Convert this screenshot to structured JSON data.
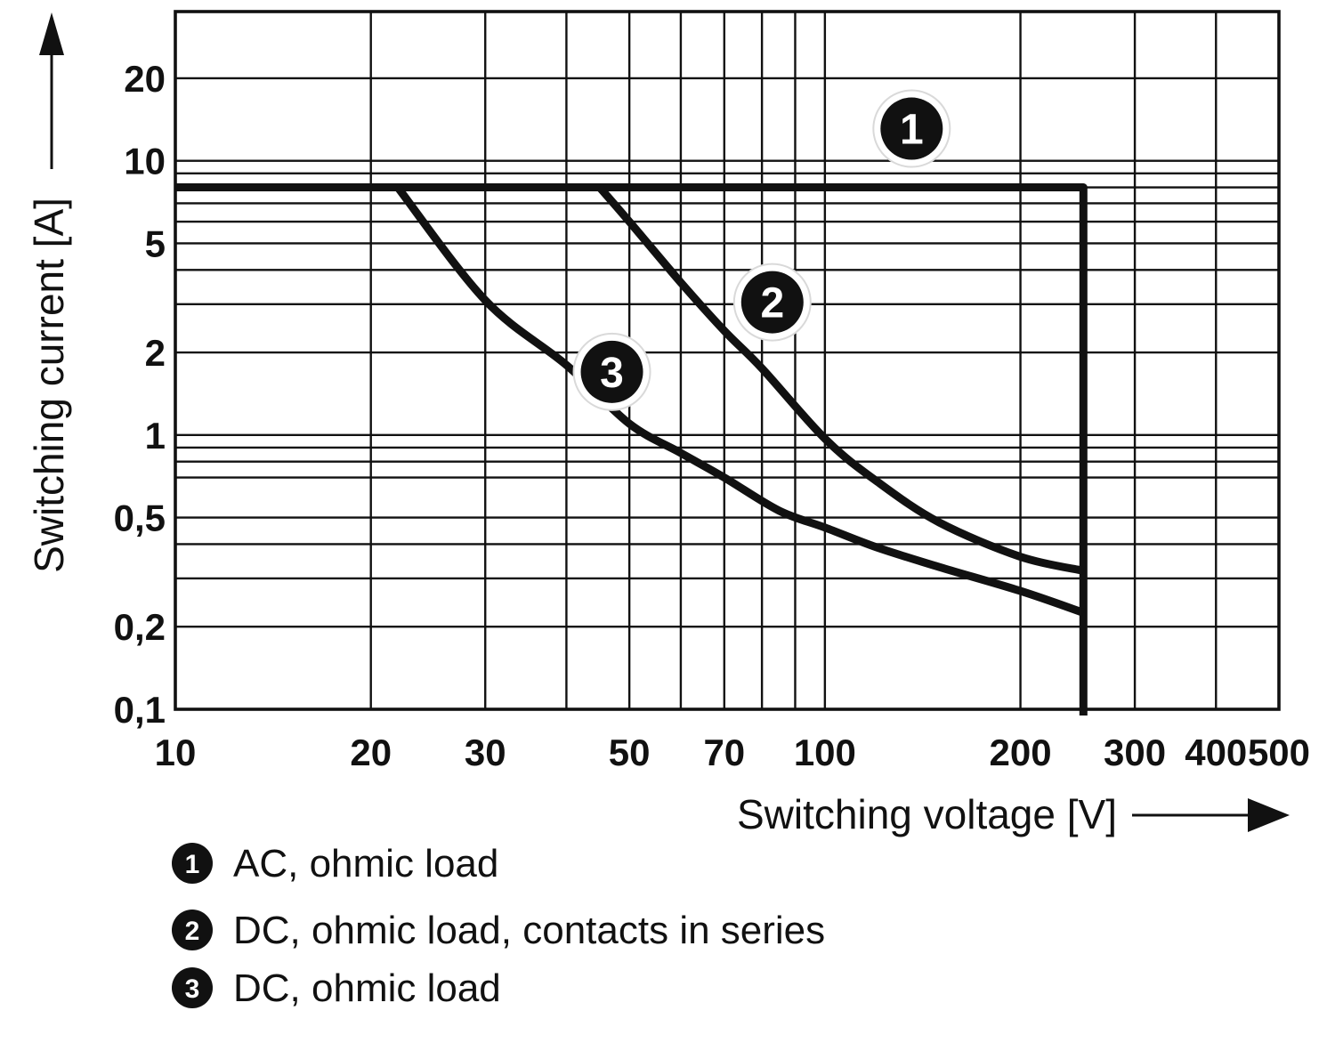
{
  "chart_data": {
    "type": "line",
    "title": "",
    "xlabel": "Switching voltage [V]",
    "ylabel": "Switching current [A]",
    "x_scale": "log",
    "y_scale": "log",
    "xlim": [
      10,
      500
    ],
    "ylim": [
      0.1,
      35
    ],
    "grid": true,
    "legend_position": "bottom-left",
    "x_ticks": [
      {
        "v": 10,
        "label": "10"
      },
      {
        "v": 20,
        "label": "20"
      },
      {
        "v": 30,
        "label": "30"
      },
      {
        "v": 50,
        "label": "50"
      },
      {
        "v": 70,
        "label": "70"
      },
      {
        "v": 100,
        "label": "100"
      },
      {
        "v": 200,
        "label": "200"
      },
      {
        "v": 300,
        "label": "300"
      },
      {
        "v": 400,
        "label": "400"
      },
      {
        "v": 500,
        "label": "500"
      }
    ],
    "y_ticks": [
      {
        "v": 20,
        "label": "20"
      },
      {
        "v": 10,
        "label": "10"
      },
      {
        "v": 5,
        "label": "5"
      },
      {
        "v": 2,
        "label": "2"
      },
      {
        "v": 1,
        "label": "1"
      },
      {
        "v": 0.5,
        "label": "0,5"
      },
      {
        "v": 0.2,
        "label": "0,2"
      },
      {
        "v": 0.1,
        "label": "0,1"
      }
    ],
    "x_gridlines": [
      20,
      30,
      40,
      50,
      60,
      70,
      80,
      90,
      100,
      200,
      300,
      400
    ],
    "y_gridlines": [
      20,
      10,
      9,
      8,
      7,
      6,
      5,
      4,
      3,
      2,
      1,
      0.9,
      0.8,
      0.7,
      0.5,
      0.4,
      0.3,
      0.2
    ],
    "series": [
      {
        "marker": "1",
        "name": "AC, ohmic load",
        "style": "step",
        "points": [
          [
            10,
            8
          ],
          [
            250,
            8
          ],
          [
            250,
            0.1
          ]
        ]
      },
      {
        "marker": "2",
        "name": "DC, ohmic load, contacts in series",
        "style": "smooth",
        "points": [
          [
            45,
            8
          ],
          [
            50,
            6
          ],
          [
            60,
            3.6
          ],
          [
            70,
            2.4
          ],
          [
            80,
            1.75
          ],
          [
            100,
            0.97
          ],
          [
            120,
            0.68
          ],
          [
            150,
            0.48
          ],
          [
            200,
            0.36
          ],
          [
            250,
            0.32
          ]
        ]
      },
      {
        "marker": "3",
        "name": "DC, ohmic load",
        "style": "smooth",
        "points": [
          [
            22,
            8
          ],
          [
            30,
            3.1
          ],
          [
            40,
            1.8
          ],
          [
            50,
            1.1
          ],
          [
            60,
            0.86
          ],
          [
            70,
            0.7
          ],
          [
            85,
            0.53
          ],
          [
            100,
            0.46
          ],
          [
            120,
            0.39
          ],
          [
            150,
            0.33
          ],
          [
            200,
            0.27
          ],
          [
            250,
            0.225
          ]
        ]
      }
    ],
    "curve_markers": [
      {
        "label": "1",
        "x": 136,
        "y": 13.1
      },
      {
        "label": "2",
        "x": 83,
        "y": 3.05
      },
      {
        "label": "3",
        "x": 47,
        "y": 1.7
      }
    ]
  },
  "legend": {
    "items": [
      {
        "symbol": "1",
        "label": "AC, ohmic load"
      },
      {
        "symbol": "2",
        "label": "DC, ohmic load, contacts in series"
      },
      {
        "symbol": "3",
        "label": "DC, ohmic load"
      }
    ]
  },
  "colors": {
    "ink": "#111111",
    "background": "#ffffff",
    "marker_halo": "#ffffff",
    "marker_halo_edge": "#d9d9d9"
  }
}
